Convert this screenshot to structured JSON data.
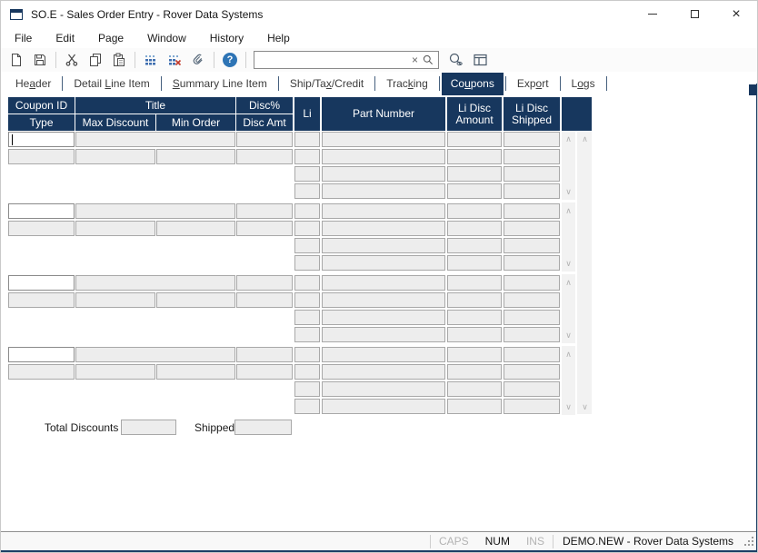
{
  "window": {
    "title": "SO.E - Sales Order Entry - Rover Data Systems"
  },
  "menu": {
    "items": [
      "File",
      "Edit",
      "Page",
      "Window",
      "History",
      "Help"
    ]
  },
  "toolbar": {
    "icon_buttons": [
      "new-document",
      "save",
      "cut",
      "copy",
      "paste",
      "insert-line",
      "delete-line",
      "attach-file",
      "help"
    ],
    "search": {
      "value": "",
      "clear_glyph": "×"
    },
    "trailing_buttons": [
      "find-record",
      "toggle-panel"
    ]
  },
  "tabs": {
    "items": [
      {
        "label": "Header",
        "accel_index": 2,
        "active": false
      },
      {
        "label": "Detail Line Item",
        "accel_index": 7,
        "active": false
      },
      {
        "label": "Summary Line Item",
        "accel_index": 0,
        "active": false
      },
      {
        "label": "Ship/Tax/Credit",
        "accel_index": 7,
        "active": false
      },
      {
        "label": "Tracking",
        "accel_index": 4,
        "active": false
      },
      {
        "label": "Coupons",
        "accel_index": 2,
        "active": true
      },
      {
        "label": "Export",
        "accel_index": 3,
        "active": false
      },
      {
        "label": "Logs",
        "accel_index": 1,
        "active": false
      }
    ]
  },
  "grid": {
    "left_header": {
      "row1": [
        "Coupon ID",
        "Title",
        "Disc%"
      ],
      "row2": [
        "Type",
        "Max Discount",
        "Min Order",
        "Disc Amt"
      ]
    },
    "right_header": [
      "Li",
      "Part Number",
      "Li Disc Amount",
      "Li Disc Shipped"
    ]
  },
  "form": {
    "blocks": [
      {
        "coupon_id": "",
        "title": "",
        "disc_pct": "",
        "type": "",
        "max_discount": "",
        "min_order": "",
        "disc_amt": "",
        "focused": true,
        "lines": [
          {
            "li": "",
            "part_number": "",
            "li_disc_amount": "",
            "li_disc_shipped": ""
          },
          {
            "li": "",
            "part_number": "",
            "li_disc_amount": "",
            "li_disc_shipped": ""
          },
          {
            "li": "",
            "part_number": "",
            "li_disc_amount": "",
            "li_disc_shipped": ""
          },
          {
            "li": "",
            "part_number": "",
            "li_disc_amount": "",
            "li_disc_shipped": ""
          }
        ]
      },
      {
        "coupon_id": "",
        "title": "",
        "disc_pct": "",
        "type": "",
        "max_discount": "",
        "min_order": "",
        "disc_amt": "",
        "focused": false,
        "lines": [
          {
            "li": "",
            "part_number": "",
            "li_disc_amount": "",
            "li_disc_shipped": ""
          },
          {
            "li": "",
            "part_number": "",
            "li_disc_amount": "",
            "li_disc_shipped": ""
          },
          {
            "li": "",
            "part_number": "",
            "li_disc_amount": "",
            "li_disc_shipped": ""
          },
          {
            "li": "",
            "part_number": "",
            "li_disc_amount": "",
            "li_disc_shipped": ""
          }
        ]
      },
      {
        "coupon_id": "",
        "title": "",
        "disc_pct": "",
        "type": "",
        "max_discount": "",
        "min_order": "",
        "disc_amt": "",
        "focused": false,
        "lines": [
          {
            "li": "",
            "part_number": "",
            "li_disc_amount": "",
            "li_disc_shipped": ""
          },
          {
            "li": "",
            "part_number": "",
            "li_disc_amount": "",
            "li_disc_shipped": ""
          },
          {
            "li": "",
            "part_number": "",
            "li_disc_amount": "",
            "li_disc_shipped": ""
          },
          {
            "li": "",
            "part_number": "",
            "li_disc_amount": "",
            "li_disc_shipped": ""
          }
        ]
      },
      {
        "coupon_id": "",
        "title": "",
        "disc_pct": "",
        "type": "",
        "max_discount": "",
        "min_order": "",
        "disc_amt": "",
        "focused": false,
        "lines": [
          {
            "li": "",
            "part_number": "",
            "li_disc_amount": "",
            "li_disc_shipped": ""
          },
          {
            "li": "",
            "part_number": "",
            "li_disc_amount": "",
            "li_disc_shipped": ""
          },
          {
            "li": "",
            "part_number": "",
            "li_disc_amount": "",
            "li_disc_shipped": ""
          },
          {
            "li": "",
            "part_number": "",
            "li_disc_amount": "",
            "li_disc_shipped": ""
          }
        ]
      }
    ],
    "totals": {
      "total_discounts_label": "Total Discounts",
      "total_discounts_value": "",
      "shipped_label": "Shipped",
      "shipped_value": ""
    }
  },
  "statusbar": {
    "caps": "CAPS",
    "num": "NUM",
    "ins": "INS",
    "caps_active": false,
    "num_active": true,
    "ins_active": false,
    "message": "DEMO.NEW - Rover Data Systems"
  },
  "icons": {
    "scroll_up": "∧",
    "scroll_down": "∨",
    "close": "×",
    "help": "?"
  },
  "colors": {
    "accent_navy": "#17375e",
    "field_bg": "#ededed",
    "field_border": "#a8a8a8",
    "bottom_border": "#1c3f66"
  }
}
